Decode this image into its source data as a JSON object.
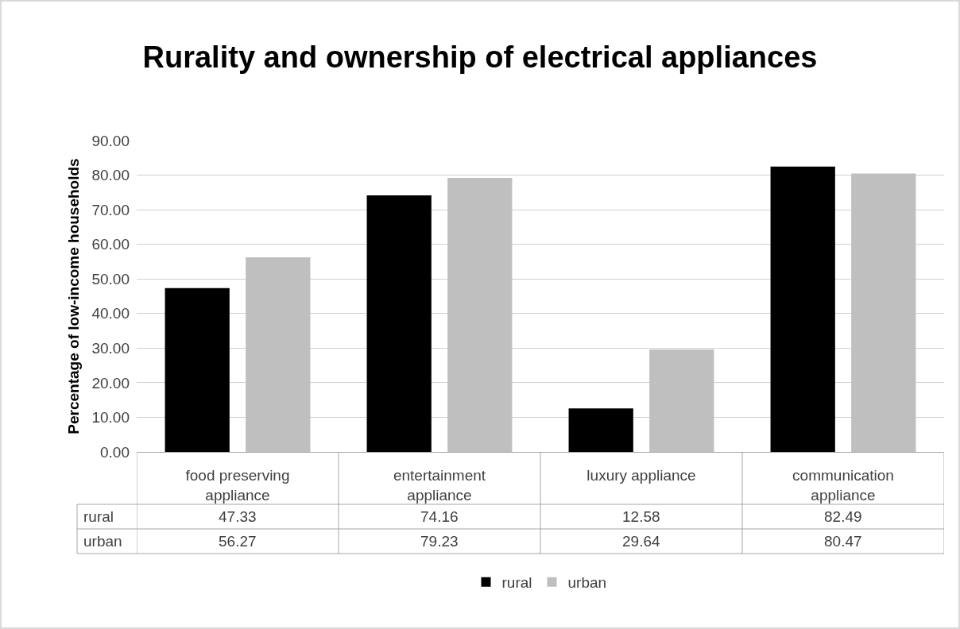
{
  "chart_data": {
    "type": "bar",
    "title": "Rurality and ownership of electrical appliances",
    "ylabel": "Percentage of low-income households",
    "categories": [
      "food preserving appliance",
      "entertainment appliance",
      "luxury appliance",
      "communication appliance"
    ],
    "series": [
      {
        "name": "rural",
        "color": "#000000",
        "values": [
          47.33,
          74.16,
          12.58,
          82.49
        ]
      },
      {
        "name": "urban",
        "color": "#bfbfbf",
        "values": [
          56.27,
          79.23,
          29.64,
          80.47
        ]
      }
    ],
    "ylim": [
      0,
      90
    ],
    "yticks": [
      {
        "value": 0,
        "label": "0.00"
      },
      {
        "value": 10,
        "label": "10.00"
      },
      {
        "value": 20,
        "label": "20.00"
      },
      {
        "value": 30,
        "label": "30.00"
      },
      {
        "value": 40,
        "label": "40.00"
      },
      {
        "value": 50,
        "label": "50.00"
      },
      {
        "value": 60,
        "label": "60.00"
      },
      {
        "value": 70,
        "label": "70.00"
      },
      {
        "value": 80,
        "label": "80.00"
      },
      {
        "value": 90,
        "label": "90.00"
      }
    ],
    "grid": "y",
    "legend": "bottom",
    "data_labels": true
  }
}
